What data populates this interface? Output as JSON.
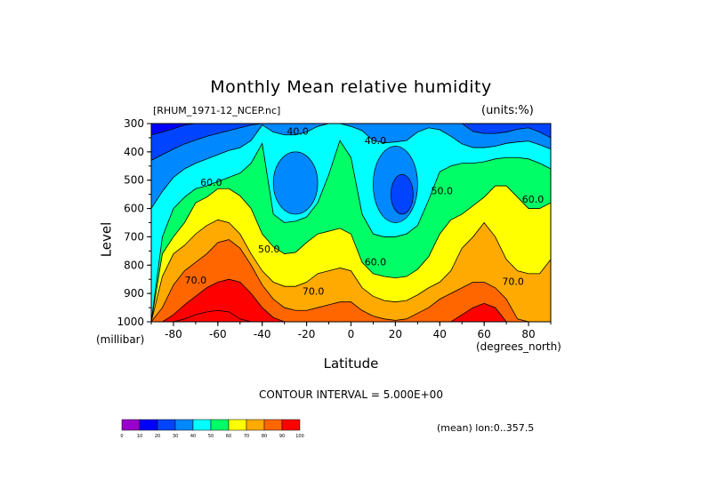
{
  "chart_data": {
    "type": "heatmap",
    "title": "Monthly Mean relative humidity",
    "file_label": "[RHUM_1971-12_NCEP.nc]",
    "units_label": "(units:%)",
    "xlabel": "Latitude",
    "xunit": "(degrees_north)",
    "ylabel": "Level",
    "yunit": "(millibar)",
    "xlim": [
      -90,
      90
    ],
    "ylim": [
      1000,
      300
    ],
    "x_ticks": [
      "-80",
      "-60",
      "-40",
      "-20",
      "0",
      "20",
      "40",
      "60",
      "80"
    ],
    "y_ticks": [
      "300",
      "400",
      "500",
      "600",
      "700",
      "800",
      "900",
      "1000"
    ],
    "contour_interval_text": "CONTOUR INTERVAL = 5.000E+00",
    "footer_text": "(mean) lon:0..357.5",
    "colorbar": {
      "levels": [
        "0",
        "10",
        "20",
        "30",
        "40",
        "50",
        "60",
        "70",
        "80",
        "90",
        "100"
      ],
      "colors": [
        "#9900cc",
        "#0000ff",
        "#0044ff",
        "#0088ff",
        "#00ffff",
        "#00ff66",
        "#ffff00",
        "#ffaa00",
        "#ff6600",
        "#ff0000"
      ]
    },
    "contour_labels": [
      {
        "text": "40.0",
        "lat": -24,
        "p": 340
      },
      {
        "text": "40.0",
        "lat": 11,
        "p": 372
      },
      {
        "text": "60.0",
        "lat": -63,
        "p": 520
      },
      {
        "text": "50.0",
        "lat": 41,
        "p": 550
      },
      {
        "text": "60.0",
        "lat": 82,
        "p": 580
      },
      {
        "text": "50.0",
        "lat": -37,
        "p": 755
      },
      {
        "text": "60.0",
        "lat": 11,
        "p": 800
      },
      {
        "text": "70.0",
        "lat": -70,
        "p": 865
      },
      {
        "text": "70.0",
        "lat": -17,
        "p": 905
      },
      {
        "text": "70.0",
        "lat": 73,
        "p": 870
      }
    ],
    "profiles_lat": [
      -90,
      -85,
      -80,
      -75,
      -70,
      -65,
      -60,
      -55,
      -50,
      -45,
      -40,
      -35,
      -30,
      -25,
      -20,
      -15,
      -10,
      -5,
      0,
      5,
      10,
      15,
      20,
      25,
      30,
      35,
      40,
      45,
      50,
      55,
      60,
      65,
      70,
      75,
      80,
      85,
      90
    ],
    "boundaries": {
      "iso_20": [
        340,
        330,
        318,
        305,
        300,
        300,
        300,
        300,
        300,
        300,
        300,
        300,
        300,
        300,
        300,
        300,
        300,
        300,
        300,
        300,
        300,
        300,
        300,
        300,
        300,
        300,
        300,
        300,
        300,
        300,
        300,
        300,
        300,
        300,
        300,
        300,
        300
      ],
      "iso_30": [
        430,
        410,
        390,
        372,
        358,
        345,
        335,
        325,
        315,
        305,
        300,
        300,
        300,
        300,
        300,
        300,
        300,
        300,
        300,
        300,
        300,
        300,
        300,
        300,
        300,
        300,
        300,
        300,
        300,
        328,
        335,
        335,
        330,
        320,
        315,
        330,
        350
      ],
      "iso_40": [
        600,
        540,
        490,
        460,
        440,
        425,
        410,
        395,
        385,
        360,
        305,
        330,
        340,
        340,
        330,
        310,
        300,
        300,
        310,
        325,
        360,
        368,
        365,
        360,
        330,
        315,
        322,
        345,
        372,
        385,
        385,
        380,
        370,
        365,
        362,
        375,
        390
      ],
      "iso_50": [
        1000,
        700,
        600,
        560,
        530,
        520,
        505,
        490,
        475,
        440,
        370,
        620,
        650,
        645,
        630,
        580,
        480,
        360,
        420,
        620,
        690,
        700,
        700,
        690,
        660,
        570,
        470,
        450,
        440,
        440,
        435,
        425,
        420,
        420,
        425,
        440,
        460
      ],
      "iso_60": [
        1000,
        760,
        700,
        650,
        580,
        560,
        530,
        530,
        555,
        600,
        690,
        735,
        760,
        755,
        720,
        690,
        680,
        670,
        690,
        790,
        830,
        840,
        845,
        840,
        815,
        770,
        690,
        640,
        620,
        590,
        560,
        520,
        520,
        560,
        600,
        600,
        580
      ],
      "iso_70": [
        1000,
        840,
        760,
        730,
        690,
        660,
        640,
        650,
        690,
        760,
        820,
        860,
        875,
        875,
        860,
        830,
        820,
        810,
        820,
        880,
        910,
        925,
        930,
        925,
        905,
        880,
        860,
        820,
        740,
        700,
        650,
        700,
        780,
        820,
        830,
        830,
        780
      ],
      "iso_80": [
        1000,
        950,
        870,
        820,
        790,
        760,
        720,
        710,
        740,
        800,
        870,
        920,
        950,
        960,
        960,
        950,
        940,
        930,
        930,
        960,
        980,
        990,
        995,
        990,
        970,
        950,
        920,
        900,
        880,
        860,
        860,
        880,
        920,
        990,
        1000,
        1000,
        1000
      ],
      "iso_90": [
        1000,
        1000,
        975,
        940,
        910,
        880,
        860,
        850,
        860,
        900,
        950,
        985,
        1000,
        1000,
        1000,
        1000,
        1000,
        1000,
        1000,
        1000,
        1000,
        1000,
        1000,
        1000,
        1000,
        1000,
        1000,
        1000,
        975,
        950,
        935,
        950,
        1000,
        1000,
        1000,
        1000,
        1000
      ],
      "iso_100": [
        1000,
        1000,
        1000,
        990,
        975,
        965,
        960,
        965,
        990,
        1000,
        1000,
        1000,
        1000,
        1000,
        1000,
        1000,
        1000,
        1000,
        1000,
        1000,
        1000,
        1000,
        1000,
        1000,
        1000,
        1000,
        1000,
        1000,
        1000,
        1000,
        1000,
        1000,
        1000,
        1000,
        1000,
        1000,
        1000
      ]
    },
    "minima": [
      {
        "value_band": "30-40",
        "lat_range": [
          -35,
          -15
        ],
        "p_range": [
          400,
          620
        ]
      },
      {
        "value_band": "30-40",
        "lat_range": [
          10,
          30
        ],
        "p_range": [
          380,
          650
        ]
      },
      {
        "value_band": "20-30",
        "lat_range": [
          18,
          28
        ],
        "p_range": [
          480,
          620
        ]
      }
    ],
    "grid": false,
    "legend_position": "bottom-left"
  }
}
